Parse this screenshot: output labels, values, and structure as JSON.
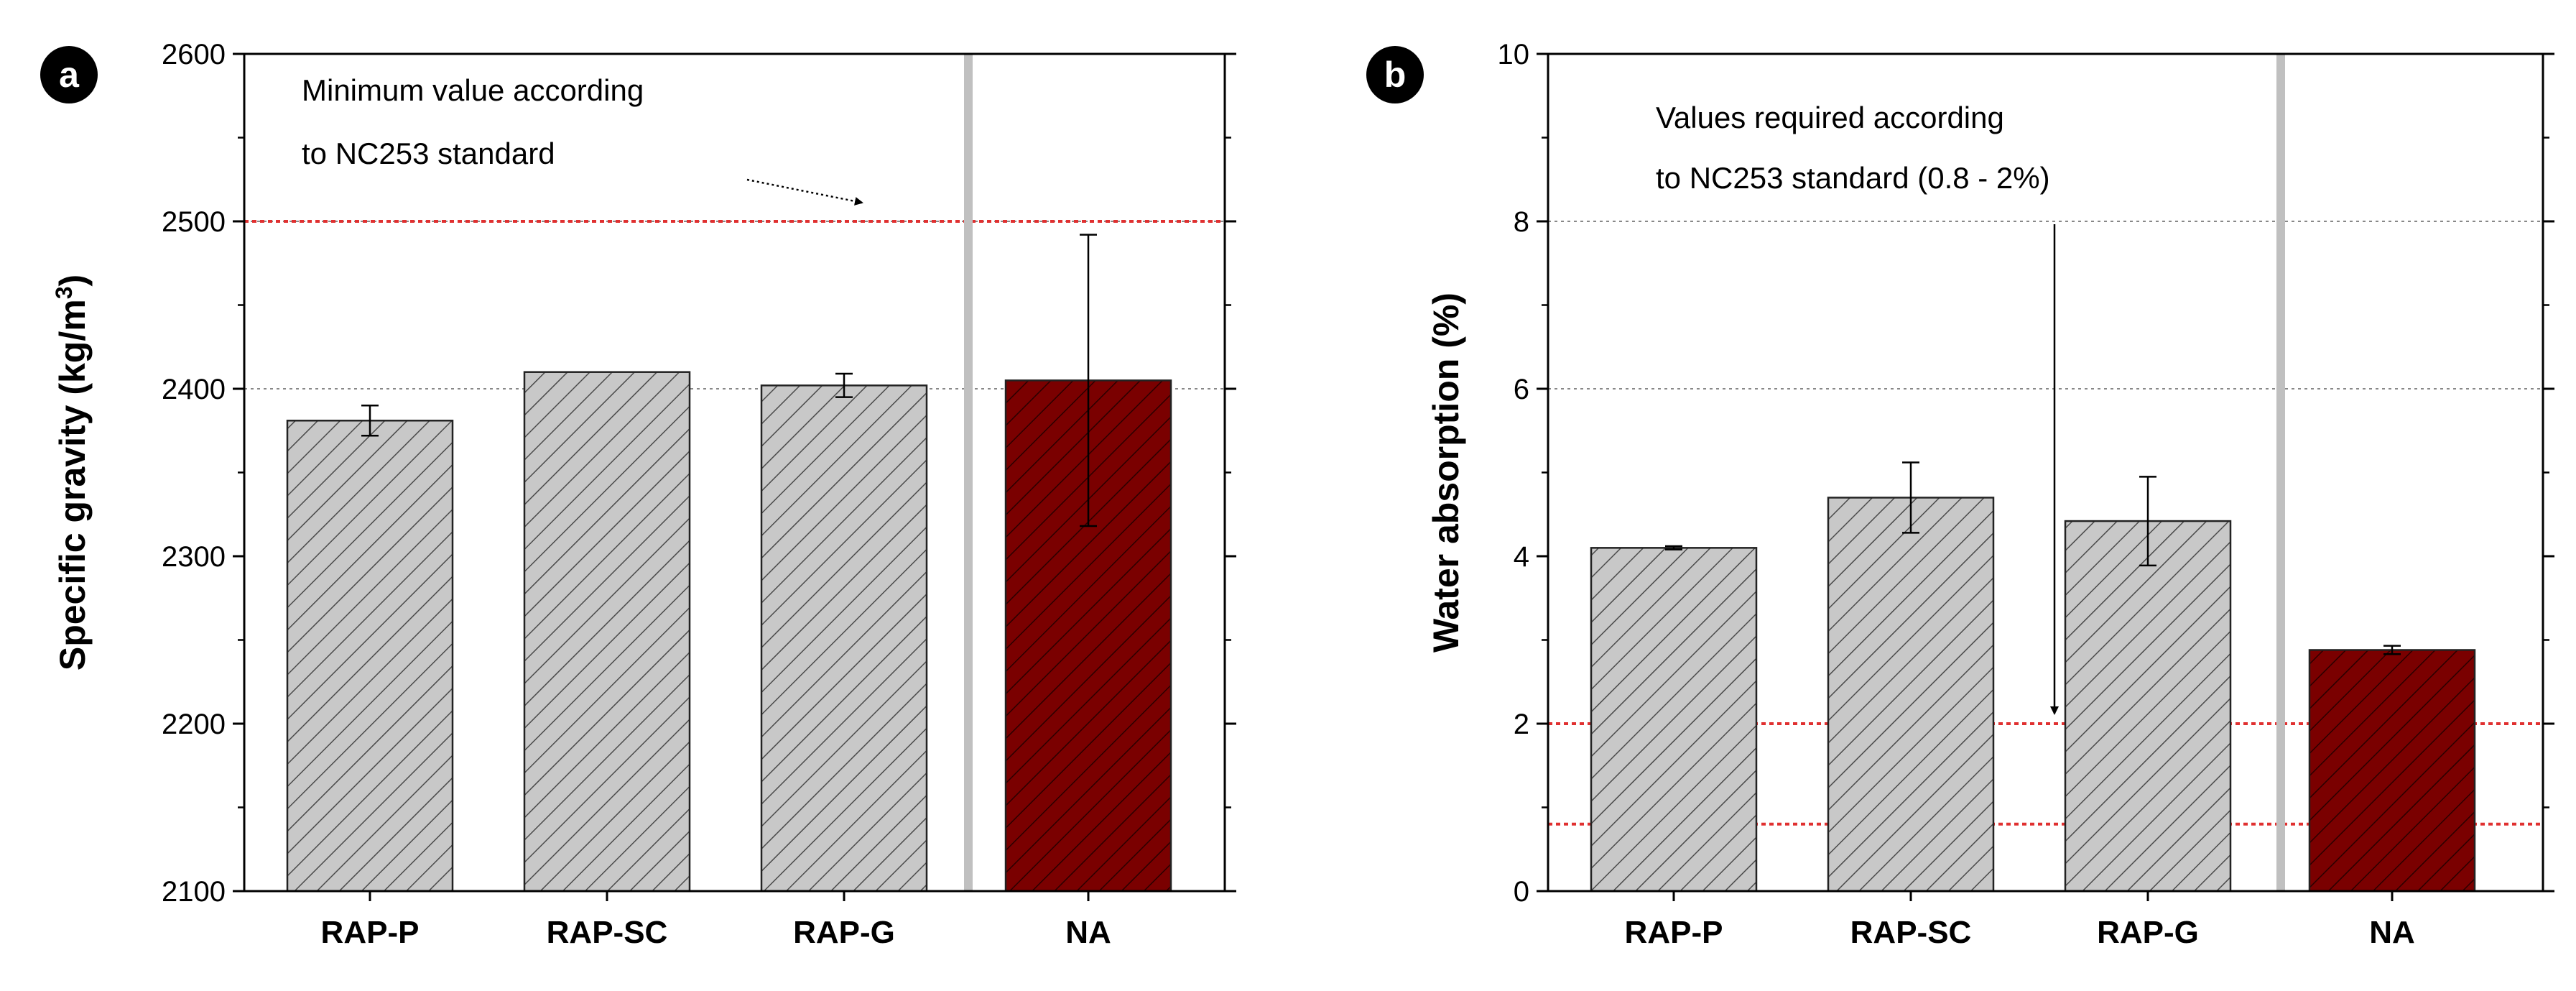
{
  "chart_data": [
    {
      "type": "bar",
      "panel_label": "a",
      "categories": [
        "RAP-P",
        "RAP-SC",
        "RAP-G",
        "NA"
      ],
      "values": [
        2381,
        2410,
        2402,
        2405
      ],
      "errors": [
        9,
        0,
        7,
        87
      ],
      "bar_colors": [
        "#c8c8c8",
        "#c8c8c8",
        "#c8c8c8",
        "#7a0000"
      ],
      "ylabel": "Specific gravity (kg/m3)",
      "ylabel_main": "Specific gravity (kg/m",
      "ylabel_sup": "3",
      "ylabel_end": ")",
      "ylim": [
        2100,
        2600
      ],
      "yticks": [
        2100,
        2200,
        2300,
        2400,
        2500,
        2600
      ],
      "gridlines": [
        2400,
        2500
      ],
      "reference_lines": [
        2500
      ],
      "annotation": [
        "Minimum value according",
        "to NC253 standard"
      ],
      "separator_after_index": 2
    },
    {
      "type": "bar",
      "panel_label": "b",
      "categories": [
        "RAP-P",
        "RAP-SC",
        "RAP-G",
        "NA"
      ],
      "values": [
        4.1,
        4.7,
        4.42,
        2.88
      ],
      "errors": [
        0.02,
        0.42,
        0.53,
        0.05
      ],
      "bar_colors": [
        "#c8c8c8",
        "#c8c8c8",
        "#c8c8c8",
        "#7a0000"
      ],
      "ylabel": "Water absorption (%)",
      "ylabel_main": "Water absorption (%)",
      "ylabel_sup": "",
      "ylabel_end": "",
      "ylim": [
        0,
        10
      ],
      "yticks": [
        0,
        2,
        4,
        6,
        8,
        10
      ],
      "gridlines": [
        6,
        8
      ],
      "reference_lines": [
        0.8,
        2
      ],
      "annotation": [
        "Values required according",
        "to NC253 standard (0.8 - 2%)"
      ],
      "separator_after_index": 2
    }
  ],
  "colors": {
    "rap_bar": "#c8c8c8",
    "na_bar": "#7a0000",
    "reference_line": "#e03030",
    "separator": "#c0c0c0",
    "gridline": "#888888"
  }
}
